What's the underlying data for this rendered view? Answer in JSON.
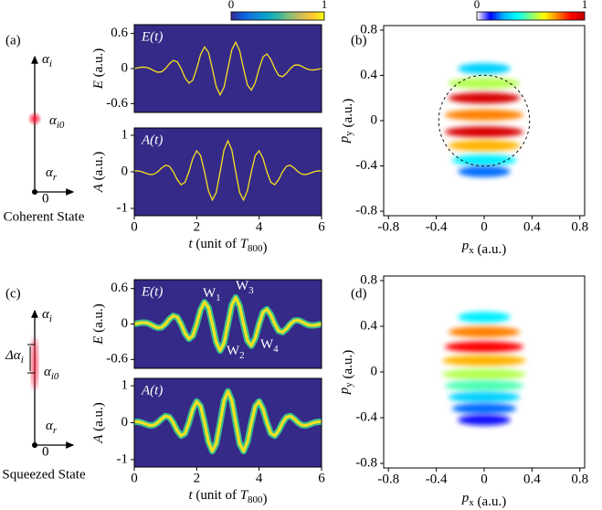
{
  "panel_labels": [
    "(a)",
    "(b)",
    "(c)",
    "(d)"
  ],
  "diagrams": [
    {
      "axis_y": [
        "α",
        "i"
      ],
      "axis_x": [
        "α",
        "r"
      ],
      "origin": "0",
      "point": [
        "α",
        "i0"
      ],
      "caption": "Coherent State"
    },
    {
      "axis_y": [
        "α",
        "i"
      ],
      "axis_x": [
        "α",
        "r"
      ],
      "origin": "0",
      "point": [
        "α",
        "i0"
      ],
      "spread": [
        "Δα",
        "i"
      ],
      "caption": "Squeezed State"
    }
  ],
  "colorbars": [
    {
      "ticks": [
        0,
        1
      ],
      "colors": [
        "#352a87",
        "#0f5cdd",
        "#1481d6",
        "#06a4ca",
        "#2eb7a4",
        "#87bf77",
        "#d1bb59",
        "#fec832",
        "#f9fb0e"
      ]
    },
    {
      "ticks": [
        0,
        1
      ],
      "colors": [
        "#ffffff",
        "#0000ff",
        "#00b4ff",
        "#00ffff",
        "#80ff80",
        "#ffff00",
        "#ff8000",
        "#ff0000",
        "#c00000"
      ]
    }
  ],
  "chart_data": [
    {
      "type": "line",
      "annotation": "E(t)",
      "ylabel": [
        "E",
        " (a.u.)"
      ],
      "color": "#f9e21f",
      "xlim": [
        0,
        6
      ],
      "ylim": [
        -0.75,
        0.75
      ],
      "yticks": [
        0.6,
        0,
        -0.6
      ],
      "x": [
        0,
        0.125,
        0.25,
        0.375,
        0.5,
        0.625,
        0.75,
        0.875,
        1,
        1.125,
        1.25,
        1.375,
        1.5,
        1.625,
        1.75,
        1.875,
        2,
        2.125,
        2.25,
        2.375,
        2.5,
        2.625,
        2.75,
        2.875,
        3,
        3.125,
        3.25,
        3.375,
        3.5,
        3.625,
        3.75,
        3.875,
        4,
        4.125,
        4.25,
        4.375,
        4.5,
        4.625,
        4.75,
        4.875,
        5,
        5.125,
        5.25,
        5.375,
        5.5,
        5.625,
        5.75,
        5.875,
        6
      ],
      "values": [
        0,
        0.013,
        0.024,
        0.022,
        0,
        -0.036,
        -0.063,
        -0.056,
        0,
        0.082,
        0.139,
        0.116,
        0,
        -0.156,
        -0.25,
        -0.199,
        0,
        0.241,
        0.369,
        0.279,
        0,
        -0.308,
        -0.449,
        -0.323,
        0,
        0.323,
        0.449,
        0.308,
        0,
        -0.279,
        -0.369,
        -0.241,
        0,
        0.199,
        0.25,
        0.156,
        0,
        -0.116,
        -0.139,
        -0.082,
        0,
        0.056,
        0.063,
        0.036,
        0,
        -0.022,
        -0.024,
        -0.013,
        0
      ]
    },
    {
      "type": "line",
      "annotation": "A(t)",
      "ylabel": [
        "A",
        " (a.u.)"
      ],
      "xlabel": [
        "t",
        " (unit of ",
        "T",
        "800",
        ")"
      ],
      "color": "#f9e21f",
      "xlim": [
        0,
        6
      ],
      "ylim": [
        -1.2,
        1.2
      ],
      "yticks": [
        1,
        0,
        -1
      ],
      "xticks": [
        0,
        2,
        4,
        6
      ],
      "x": [
        0,
        0.125,
        0.25,
        0.375,
        0.5,
        0.625,
        0.75,
        0.875,
        1,
        1.125,
        1.25,
        1.375,
        1.5,
        1.625,
        1.75,
        1.875,
        2,
        2.125,
        2.25,
        2.375,
        2.5,
        2.625,
        2.75,
        2.875,
        3,
        3.125,
        3.25,
        3.375,
        3.5,
        3.625,
        3.75,
        3.875,
        4,
        4.125,
        4.25,
        4.375,
        4.5,
        4.625,
        4.75,
        4.875,
        5,
        5.125,
        5.25,
        5.375,
        5.5,
        5.625,
        5.75,
        5.875,
        6
      ],
      "values": [
        0.026,
        0.024,
        0,
        -0.041,
        -0.074,
        -0.066,
        0,
        0.103,
        0.179,
        0.152,
        0,
        -0.214,
        -0.353,
        -0.287,
        0,
        0.367,
        0.575,
        0.445,
        0,
        -0.515,
        -0.771,
        -0.568,
        0,
        0.597,
        0.85,
        0.597,
        0,
        -0.568,
        -0.771,
        -0.515,
        0,
        0.445,
        0.575,
        0.367,
        0,
        -0.287,
        -0.353,
        -0.214,
        0,
        0.152,
        0.179,
        0.103,
        0,
        -0.066,
        -0.074,
        -0.041,
        0,
        0.024,
        0.026
      ]
    },
    {
      "type": "heatmap",
      "ylabel": [
        "p",
        "y",
        " (a.u.)"
      ],
      "xlabel": [
        "p",
        "x",
        " (a.u.)"
      ],
      "xlim": [
        -0.84,
        0.84
      ],
      "ylim": [
        -0.84,
        0.84
      ],
      "xticks": [
        -0.8,
        -0.4,
        0,
        0.4,
        0.8
      ],
      "yticks": [
        0.8,
        0.4,
        0,
        -0.4,
        -0.8
      ],
      "rows": [
        0.46,
        0.33,
        0.2,
        0.05,
        -0.1,
        -0.22,
        -0.35,
        -0.45
      ],
      "halfwidths": [
        0.22,
        0.3,
        0.3,
        0.33,
        0.33,
        0.3,
        0.27,
        0.22
      ],
      "values": [
        0.3,
        0.55,
        0.95,
        0.75,
        0.95,
        0.7,
        0.35,
        0.2
      ],
      "circle_radius": 0.38
    },
    {
      "type": "line",
      "annotation": "E(t)",
      "ylabel": [
        "E",
        " (a.u.)"
      ],
      "color": "#f9e21f",
      "band_color": "#3cbf8c",
      "xlim": [
        0,
        6
      ],
      "ylim": [
        -0.75,
        0.75
      ],
      "yticks": [
        0.6,
        0,
        -0.6
      ],
      "annotations": [
        [
          "W",
          "1"
        ],
        [
          "W",
          "2"
        ],
        [
          "W",
          "3"
        ],
        [
          "W",
          "4"
        ]
      ],
      "x": [
        0,
        0.125,
        0.25,
        0.375,
        0.5,
        0.625,
        0.75,
        0.875,
        1,
        1.125,
        1.25,
        1.375,
        1.5,
        1.625,
        1.75,
        1.875,
        2,
        2.125,
        2.25,
        2.375,
        2.5,
        2.625,
        2.75,
        2.875,
        3,
        3.125,
        3.25,
        3.375,
        3.5,
        3.625,
        3.75,
        3.875,
        4,
        4.125,
        4.25,
        4.375,
        4.5,
        4.625,
        4.75,
        4.875,
        5,
        5.125,
        5.25,
        5.375,
        5.5,
        5.625,
        5.75,
        5.875,
        6
      ],
      "values": [
        0,
        0.013,
        0.024,
        0.022,
        0,
        -0.036,
        -0.063,
        -0.056,
        0,
        0.082,
        0.139,
        0.116,
        0,
        -0.156,
        -0.25,
        -0.199,
        0,
        0.241,
        0.369,
        0.279,
        0,
        -0.308,
        -0.449,
        -0.323,
        0,
        0.323,
        0.449,
        0.308,
        0,
        -0.279,
        -0.369,
        -0.241,
        0,
        0.199,
        0.25,
        0.156,
        0,
        -0.116,
        -0.139,
        -0.082,
        0,
        0.056,
        0.063,
        0.036,
        0,
        -0.022,
        -0.024,
        -0.013,
        0
      ]
    },
    {
      "type": "line",
      "annotation": "A(t)",
      "ylabel": [
        "A",
        " (a.u.)"
      ],
      "xlabel": [
        "t",
        " (unit of ",
        "T",
        "800",
        ")"
      ],
      "color": "#f9e21f",
      "band_color": "#3cbf8c",
      "xlim": [
        0,
        6
      ],
      "ylim": [
        -1.2,
        1.2
      ],
      "yticks": [
        1,
        0,
        -1
      ],
      "xticks": [
        0,
        2,
        4,
        6
      ],
      "x": [
        0,
        0.125,
        0.25,
        0.375,
        0.5,
        0.625,
        0.75,
        0.875,
        1,
        1.125,
        1.25,
        1.375,
        1.5,
        1.625,
        1.75,
        1.875,
        2,
        2.125,
        2.25,
        2.375,
        2.5,
        2.625,
        2.75,
        2.875,
        3,
        3.125,
        3.25,
        3.375,
        3.5,
        3.625,
        3.75,
        3.875,
        4,
        4.125,
        4.25,
        4.375,
        4.5,
        4.625,
        4.75,
        4.875,
        5,
        5.125,
        5.25,
        5.375,
        5.5,
        5.625,
        5.75,
        5.875,
        6
      ],
      "values": [
        0.026,
        0.024,
        0,
        -0.041,
        -0.074,
        -0.066,
        0,
        0.103,
        0.179,
        0.152,
        0,
        -0.214,
        -0.353,
        -0.287,
        0,
        0.367,
        0.575,
        0.445,
        0,
        -0.515,
        -0.771,
        -0.568,
        0,
        0.597,
        0.85,
        0.597,
        0,
        -0.568,
        -0.771,
        -0.515,
        0,
        0.445,
        0.575,
        0.367,
        0,
        -0.287,
        -0.353,
        -0.214,
        0,
        0.152,
        0.179,
        0.103,
        0,
        -0.066,
        -0.074,
        -0.041,
        0,
        0.024,
        0.026
      ]
    },
    {
      "type": "heatmap",
      "ylabel": [
        "p",
        "y",
        " (a.u.)"
      ],
      "xlabel": [
        "p",
        "x",
        " (a.u.)"
      ],
      "xlim": [
        -0.84,
        0.84
      ],
      "ylim": [
        -0.84,
        0.84
      ],
      "xticks": [
        -0.8,
        -0.4,
        0,
        0.4,
        0.8
      ],
      "yticks": [
        0.8,
        0.4,
        0,
        -0.4,
        -0.8
      ],
      "rows": [
        0.48,
        0.35,
        0.22,
        0.1,
        -0.02,
        -0.12,
        -0.22,
        -0.32,
        -0.42
      ],
      "halfwidths": [
        0.22,
        0.3,
        0.33,
        0.35,
        0.35,
        0.33,
        0.3,
        0.27,
        0.22
      ],
      "values": [
        0.35,
        0.75,
        0.88,
        0.7,
        0.55,
        0.45,
        0.3,
        0.2,
        0.12
      ]
    }
  ]
}
